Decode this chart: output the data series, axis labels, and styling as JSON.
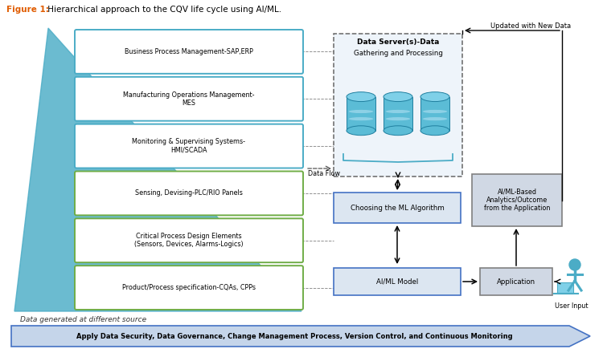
{
  "title_fig1": "Figure 1:",
  "title_rest": " Hierarchical approach to the CQV life cycle using AI/ML.",
  "title_color": "#e05c00",
  "title_rest_color": "#000000",
  "bg_color": "#ffffff",
  "pyramid_layers": [
    "Business Process Management-SAP,ERP",
    "Manufacturing Operations Management-\nMES",
    "Monitoring & Supervising Systems-\nHMI/SCADA",
    "Sensing, Devising-PLC/RIO Panels",
    "Critical Process Design Elements\n(Sensors, Devices, Alarms-Logics)",
    "Product/Process specification-CQAs, CPPs"
  ],
  "pyramid_box_border_colors": [
    "#4bacc6",
    "#4bacc6",
    "#4bacc6",
    "#70ad47",
    "#70ad47",
    "#70ad47"
  ],
  "data_server_bold": "Data Server(s)-Data",
  "data_server_normal": "Gathering and Processing",
  "data_flow_label": "Data Flow",
  "choosing_label": "Choosing the ML Algorithm",
  "aiml_model_label": "AI/ML Model",
  "application_label": "Application",
  "aiml_analytics_label": "AI/ML-Based\nAnalytics/Outcome\nfrom the Application",
  "updated_label": "Updated with New Data",
  "user_input_label": "User Input",
  "bottom_note": "Data generated at different source",
  "arrow_text": "Apply Data Security, Data Governance, Change Management Process, Version Control, and Continuous Monitoring",
  "pyramid_color": "#4bacc6",
  "box_fill_blue": "#dce6f1",
  "box_fill_gray": "#d0d8e4",
  "box_border_blue": "#4472c4",
  "box_border_gray": "#808080",
  "arrow_fill": "#5b7ec5",
  "arrow_outline": "#4472c4",
  "dashed_border": "#666666",
  "ds_fill": "#eef4fa",
  "cyl_color": "#5bbcd6",
  "cyl_top": "#7fd0e8",
  "person_color": "#4bacc6"
}
